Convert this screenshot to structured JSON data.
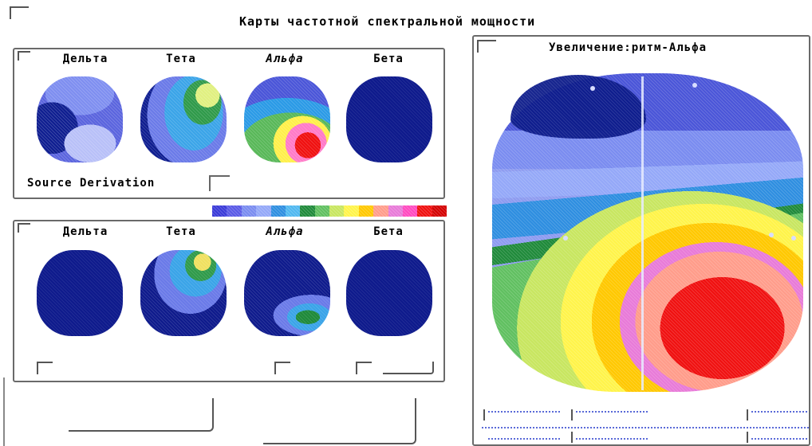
{
  "window": {
    "title": "Карты частотной спектральной мощности"
  },
  "top_panel": {
    "bands": [
      {
        "label": "Дельта"
      },
      {
        "label": "Тета"
      },
      {
        "label": "Альфа"
      },
      {
        "label": "Бета"
      }
    ],
    "derivation_label": "Source Derivation",
    "derivation_value": ""
  },
  "bottom_panel": {
    "bands": [
      {
        "label": "Дельта"
      },
      {
        "label": "Тета"
      },
      {
        "label": "Альфа"
      },
      {
        "label": "Бета"
      }
    ]
  },
  "zoom_panel": {
    "title": "Увеличение:ритм-Альфа"
  },
  "color_scale": [
    "#3a3ad8",
    "#5a5ae6",
    "#7a8cf0",
    "#94a8f8",
    "#2e8ee0",
    "#50b8f0",
    "#1f8a3a",
    "#60c060",
    "#c8e660",
    "#fff44a",
    "#ffc800",
    "#ff9c8a",
    "#e87ad8",
    "#ff4ac0",
    "#f01010",
    "#d40000"
  ],
  "colors": {
    "deep": "#0b1a8a",
    "blue": "#4a55d8",
    "light_blue": "#8d9bf0",
    "cyan": "#2a9ae6",
    "green_dark": "#0f7a3a",
    "green": "#4cb052",
    "yellow": "#f0ec40",
    "orange": "#ff9a30",
    "pink": "#ee7ad6",
    "red": "#f01010"
  }
}
